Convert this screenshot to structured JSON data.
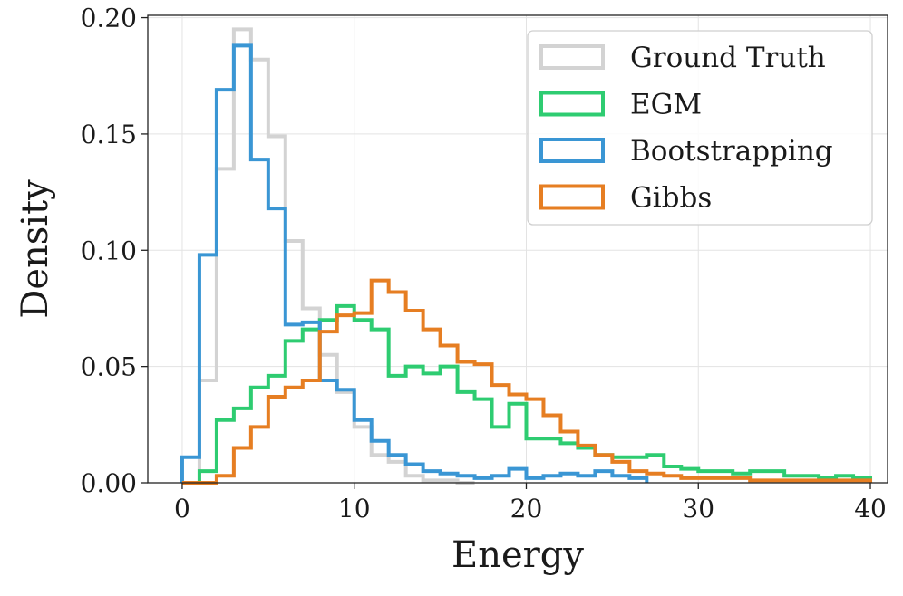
{
  "chart_data": {
    "type": "histogram",
    "xlabel": "Energy",
    "ylabel": "Density",
    "xlim": [
      -2,
      41
    ],
    "ylim": [
      0,
      0.201
    ],
    "xticks": [
      0,
      10,
      20,
      30,
      40
    ],
    "xtick_labels": [
      "0",
      "10",
      "20",
      "30",
      "40"
    ],
    "yticks": [
      0.0,
      0.05,
      0.1,
      0.15,
      0.2
    ],
    "ytick_labels": [
      "0.00",
      "0.05",
      "0.10",
      "0.15",
      "0.20"
    ],
    "grid": true,
    "legend_position": "top-right",
    "bin_edges_start": 0,
    "bin_width": 1,
    "series": [
      {
        "name": "Ground Truth",
        "color": "#d3d3d3",
        "values": [
          0.0,
          0.044,
          0.135,
          0.195,
          0.182,
          0.149,
          0.104,
          0.075,
          0.055,
          0.039,
          0.024,
          0.012,
          0.009,
          0.003,
          0.001,
          0.001,
          0.0
        ]
      },
      {
        "name": "EGM",
        "color": "#2ecc71",
        "values": [
          0.0,
          0.005,
          0.027,
          0.032,
          0.041,
          0.046,
          0.061,
          0.066,
          0.07,
          0.076,
          0.07,
          0.066,
          0.046,
          0.05,
          0.047,
          0.05,
          0.039,
          0.036,
          0.024,
          0.034,
          0.019,
          0.019,
          0.017,
          0.015,
          0.012,
          0.011,
          0.011,
          0.012,
          0.007,
          0.006,
          0.005,
          0.005,
          0.004,
          0.005,
          0.005,
          0.003,
          0.003,
          0.002,
          0.003,
          0.002
        ]
      },
      {
        "name": "Bootstrapping",
        "color": "#3a96d4",
        "values": [
          0.011,
          0.098,
          0.169,
          0.188,
          0.139,
          0.118,
          0.068,
          0.069,
          0.044,
          0.04,
          0.027,
          0.018,
          0.012,
          0.008,
          0.005,
          0.004,
          0.003,
          0.002,
          0.003,
          0.006,
          0.002,
          0.003,
          0.004,
          0.003,
          0.005,
          0.003,
          0.002
        ]
      },
      {
        "name": "Gibbs",
        "color": "#e67e22",
        "values": [
          0.0,
          0.0,
          0.003,
          0.015,
          0.024,
          0.037,
          0.041,
          0.044,
          0.065,
          0.072,
          0.073,
          0.087,
          0.082,
          0.074,
          0.066,
          0.059,
          0.052,
          0.051,
          0.042,
          0.038,
          0.036,
          0.029,
          0.022,
          0.016,
          0.012,
          0.009,
          0.005,
          0.004,
          0.003,
          0.002,
          0.002,
          0.002,
          0.002,
          0.001,
          0.001,
          0.001,
          0.001,
          0.001,
          0.001,
          0.001
        ]
      }
    ]
  }
}
